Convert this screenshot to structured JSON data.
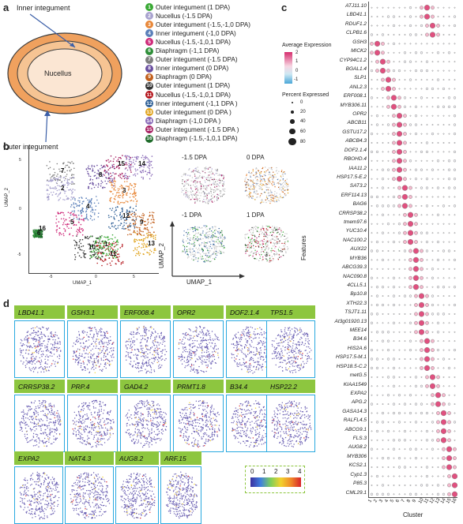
{
  "panels": {
    "a": "a",
    "b": "b",
    "c": "c",
    "d": "d"
  },
  "panel_a": {
    "inner_integument": "Inner integument",
    "nucellus": "Nucellus",
    "outer_integument": "Outer integument"
  },
  "cluster_legend": [
    {
      "id": "1",
      "label": "Outer integument (1 DPA)",
      "color": "#3aa935"
    },
    {
      "id": "2",
      "label": "Nucellus (-1.5 DPA)",
      "color": "#a9a3cf"
    },
    {
      "id": "3",
      "label": "Outer integument (-1.5,-1,0 DPA)",
      "color": "#e8883a"
    },
    {
      "id": "4",
      "label": "Inner integument (-1,0 DPA)",
      "color": "#5a7fb9"
    },
    {
      "id": "5",
      "label": "Nucellus (-1.5,-1,0,1 DPA)",
      "color": "#cf2b7a"
    },
    {
      "id": "6",
      "label": "Diaphragm (-1,1 DPA)",
      "color": "#2f8f3a"
    },
    {
      "id": "7",
      "label": "Outer integument (-1.5 DPA)",
      "color": "#7f7f7f"
    },
    {
      "id": "8",
      "label": "Inner integument (0 DPA)",
      "color": "#6a4fa0"
    },
    {
      "id": "9",
      "label": "Diaphragm (0 DPA)",
      "color": "#c2601d"
    },
    {
      "id": "10",
      "label": "Outer integument (1 DPA)",
      "color": "#333333"
    },
    {
      "id": "11",
      "label": "Nucellus (-1.5,-1,0,1 DPA)",
      "color": "#b3141b"
    },
    {
      "id": "12",
      "label": "Inner integument (-1,1 DPA )",
      "color": "#2e5f96"
    },
    {
      "id": "13",
      "label": "Outer integument (0 DPA )",
      "color": "#e0a31e"
    },
    {
      "id": "14",
      "label": "Diaphragm (-1,0 DPA )",
      "color": "#8a6bb8"
    },
    {
      "id": "15",
      "label": "Outer integument (-1.5 DPA )",
      "color": "#a51d5f"
    },
    {
      "id": "16",
      "label": "Diaphragm (-1.5,-1,0,1 DPA)",
      "color": "#1e6b2a"
    }
  ],
  "panel_b": {
    "umap1": "UMAP_1",
    "umap2": "UMAP_2",
    "small_umap1": "UMAP_1",
    "small_umap2": "UMAP_2",
    "ticks_x": [
      "-5",
      "0",
      "5"
    ],
    "ticks_y": [
      "5",
      "0",
      "-5"
    ],
    "cluster_labels": [
      "7",
      "15",
      "14",
      "8",
      "2",
      "3",
      "4",
      "5",
      "6",
      "9",
      "12",
      "11",
      "10",
      "1",
      "13",
      "16"
    ],
    "stages": [
      "-1.5 DPA",
      "0 DPA",
      "-1 DPA",
      "1 DPA"
    ]
  },
  "panel_c": {
    "avg_expr_title": "Average Expression",
    "avg_ticks": [
      "2",
      "1",
      "0",
      "-1"
    ],
    "pct_title": "Percent Expressed",
    "pct_values": [
      "0",
      "20",
      "40",
      "60",
      "80"
    ],
    "features_label": "Features",
    "cluster_label": "Cluster",
    "x_ticks": [
      "1",
      "2",
      "3",
      "4",
      "5",
      "6",
      "7",
      "8",
      "9",
      "10",
      "11",
      "12",
      "13",
      "14",
      "15",
      "16"
    ],
    "genes": [
      "ATJ11.10",
      "LBD41.1",
      "RDUF1.2",
      "CLPB1.6",
      "GSH3",
      "MICK2",
      "CYP94C1.2",
      "BGAL1.4",
      "SLP1",
      "ANL2.3",
      "ERF008.1",
      "MYB306.11",
      "OPR2",
      "ABCB11",
      "GSTU17.2",
      "ABCB4.3",
      "DOF2.1.4",
      "RBOHD.4",
      "IAA11.2",
      "HSP17.5-E.2",
      "SAT3.2",
      "ERF114.13",
      "BAG6",
      "CRRSP38.2",
      "tmem97.6",
      "YUC10.4",
      "NAC100.2",
      "AUX22",
      "MYB36",
      "ABCG39.3",
      "NAC090.8",
      "4CLL5.1",
      "Bp10.8",
      "XTH22.3",
      "TSJT1.11",
      "At3g01920.13",
      "MEE14",
      "B34.6",
      "HIS2A.6",
      "HSP17.5-M.1",
      "HSP18.5-C.2",
      "metG.5",
      "KIAA1549",
      "EXPA2",
      "APG.2",
      "GASA14.3",
      "RALFL4.5",
      "ABCG9.1",
      "FLS.3",
      "AUG8.2",
      "MYB306",
      "KCS2.1",
      "Cyp1.3",
      "P85.3",
      "CML29.1"
    ]
  },
  "panel_d": {
    "genes_row1": [
      "LBD41.1",
      "GSH3.1",
      "ERF008.4",
      "OPR2",
      "DOF2.1.4",
      "TPS1.5"
    ],
    "genes_row2": [
      "CRRSP38.2",
      "PRP.4",
      "GAD4.2",
      "PRMT1.8",
      "B34.4",
      "HSP22.2"
    ],
    "genes_row3": [
      "EXPA2",
      "NAT4.3",
      "AUG8.2",
      "ARF.15"
    ],
    "scale_ticks": [
      "0",
      "1",
      "2",
      "3",
      "4"
    ]
  }
}
